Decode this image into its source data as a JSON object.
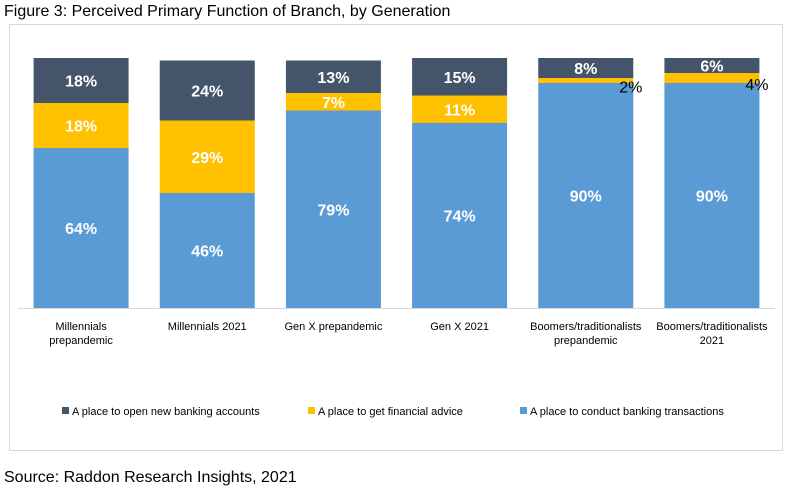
{
  "figure_title": "Figure 3: Perceived Primary Function of Branch, by Generation",
  "source": "Source: Raddon Research Insights, 2021",
  "chart_data": {
    "type": "bar",
    "stacked": true,
    "categories": [
      [
        "Millennials",
        "prepandemic"
      ],
      [
        "Millennials 2021"
      ],
      [
        "Gen X prepandemic"
      ],
      [
        "Gen X 2021"
      ],
      [
        "Boomers/traditionalists",
        "prepandemic"
      ],
      [
        "Boomers/traditionalists",
        "2021"
      ]
    ],
    "series": [
      {
        "name": "A place to conduct banking transactions",
        "color": "#5b9bd5",
        "values": [
          64,
          46,
          79,
          74,
          90,
          90
        ]
      },
      {
        "name": "A place to get financial advice",
        "color": "#ffc000",
        "values": [
          18,
          29,
          7,
          11,
          2,
          4
        ]
      },
      {
        "name": "A place to open new banking accounts",
        "color": "#44546a",
        "values": [
          18,
          24,
          13,
          15,
          8,
          6
        ]
      }
    ],
    "data_labels": [
      [
        "64%",
        "46%",
        "79%",
        "74%",
        "90%",
        "90%"
      ],
      [
        "18%",
        "29%",
        "7%",
        "11%",
        "2%",
        "4%"
      ],
      [
        "18%",
        "24%",
        "13%",
        "15%",
        "8%",
        "6%"
      ]
    ],
    "legend_order": [
      2,
      1,
      0
    ],
    "legend_position": "bottom",
    "ylim": [
      0,
      100
    ],
    "grid": false,
    "label_color": "#ffffff"
  }
}
